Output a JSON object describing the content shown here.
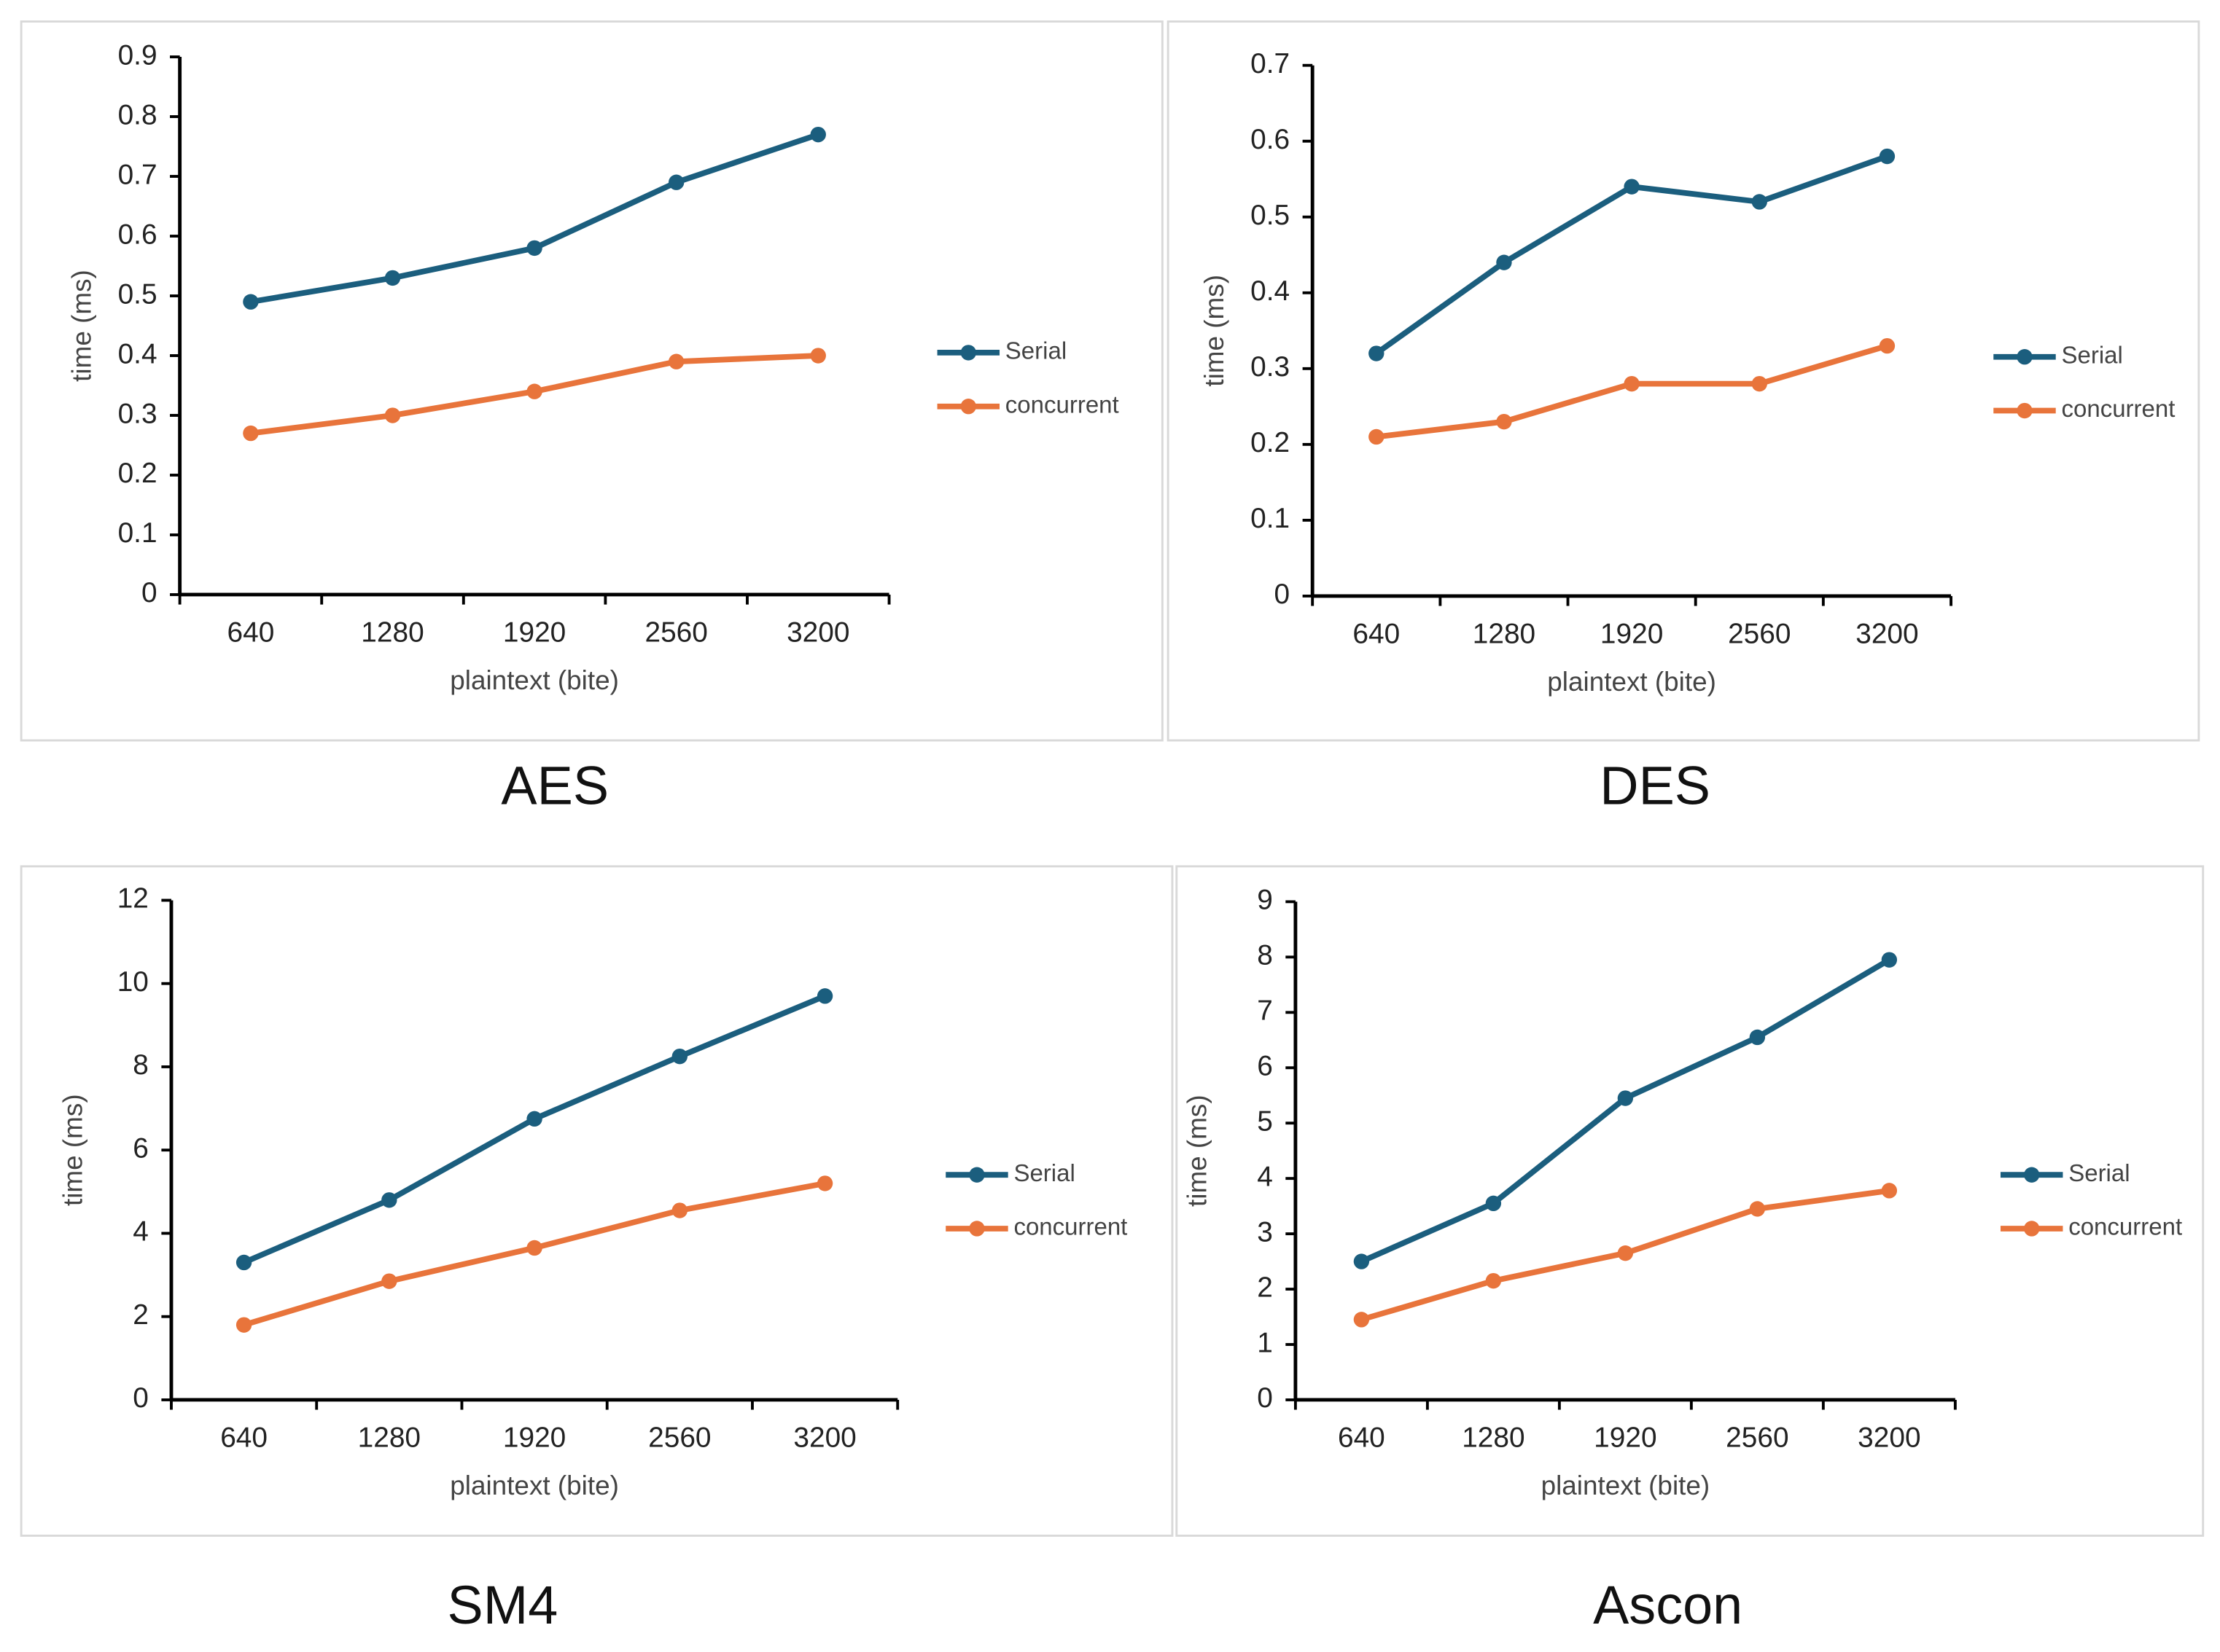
{
  "chart_data": [
    {
      "type": "line",
      "title": "AES",
      "x_label": "plaintext (bite)",
      "y_label": "time (ms)",
      "categories": [
        "640",
        "1280",
        "1920",
        "2560",
        "3200"
      ],
      "series": [
        {
          "name": "Serial",
          "color": "#1b5e7e",
          "values": [
            0.49,
            0.53,
            0.58,
            0.69,
            0.77
          ]
        },
        {
          "name": "concurrent",
          "color": "#e8743b",
          "values": [
            0.27,
            0.3,
            0.34,
            0.39,
            0.4
          ]
        }
      ],
      "ylim": [
        0,
        0.9
      ],
      "yticks": [
        0,
        0.1,
        0.2,
        0.3,
        0.4,
        0.5,
        0.6,
        0.7,
        0.8,
        0.9
      ],
      "grid": false,
      "legend": "right"
    },
    {
      "type": "line",
      "title": "DES",
      "x_label": "plaintext (bite)",
      "y_label": "time (ms)",
      "categories": [
        "640",
        "1280",
        "1920",
        "2560",
        "3200"
      ],
      "series": [
        {
          "name": "Serial",
          "color": "#1b5e7e",
          "values": [
            0.32,
            0.44,
            0.54,
            0.52,
            0.58
          ]
        },
        {
          "name": "concurrent",
          "color": "#e8743b",
          "values": [
            0.21,
            0.23,
            0.28,
            0.28,
            0.33
          ]
        }
      ],
      "ylim": [
        0,
        0.7
      ],
      "yticks": [
        0,
        0.1,
        0.2,
        0.3,
        0.4,
        0.5,
        0.6,
        0.7
      ],
      "grid": false,
      "legend": "right"
    },
    {
      "type": "line",
      "title": "SM4",
      "x_label": "plaintext (bite)",
      "y_label": "time (ms)",
      "categories": [
        "640",
        "1280",
        "1920",
        "2560",
        "3200"
      ],
      "series": [
        {
          "name": "Serial",
          "color": "#1b5e7e",
          "values": [
            3.3,
            4.8,
            6.75,
            8.25,
            9.7
          ]
        },
        {
          "name": "concurrent",
          "color": "#e8743b",
          "values": [
            1.8,
            2.85,
            3.65,
            4.55,
            5.2
          ]
        }
      ],
      "ylim": [
        0,
        12
      ],
      "yticks": [
        0,
        2,
        4,
        6,
        8,
        10,
        12
      ],
      "grid": false,
      "legend": "right"
    },
    {
      "type": "line",
      "title": "Ascon",
      "x_label": "plaintext (bite)",
      "y_label": "time (ms)",
      "categories": [
        "640",
        "1280",
        "1920",
        "2560",
        "3200"
      ],
      "series": [
        {
          "name": "Serial",
          "color": "#1b5e7e",
          "values": [
            2.5,
            3.55,
            5.45,
            6.55,
            7.95
          ]
        },
        {
          "name": "concurrent",
          "color": "#e8743b",
          "values": [
            1.45,
            2.15,
            2.65,
            3.45,
            3.78
          ]
        }
      ],
      "ylim": [
        0,
        9
      ],
      "yticks": [
        0,
        1,
        2,
        3,
        4,
        5,
        6,
        7,
        8,
        9
      ],
      "grid": false,
      "legend": "right"
    }
  ]
}
